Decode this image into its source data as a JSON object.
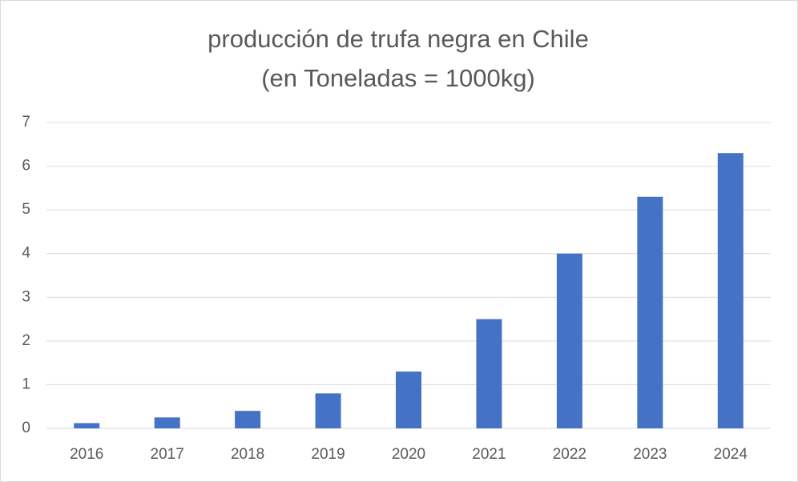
{
  "chart_data": {
    "type": "bar",
    "title": "producción de trufa negra en Chile",
    "subtitle": "(en Toneladas = 1000kg)",
    "categories": [
      "2016",
      "2017",
      "2018",
      "2019",
      "2020",
      "2021",
      "2022",
      "2023",
      "2024"
    ],
    "values": [
      0.12,
      0.25,
      0.4,
      0.8,
      1.3,
      2.5,
      4.0,
      5.3,
      6.3
    ],
    "color": "#4472c4",
    "ylim": [
      0,
      7
    ],
    "yticks": [
      0,
      1,
      2,
      3,
      4,
      5,
      6,
      7
    ],
    "grid": true
  }
}
